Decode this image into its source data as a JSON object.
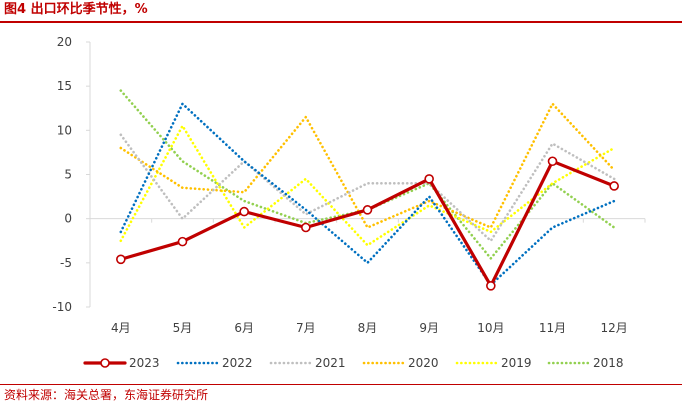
{
  "header": {
    "title": "图4  出口环比季节性，%"
  },
  "footer": {
    "source": "资料来源：海关总署，东海证券研究所"
  },
  "chart_data": {
    "type": "line",
    "title": "出口环比季节性，%",
    "xlabel": "",
    "ylabel": "",
    "categories": [
      "4月",
      "5月",
      "6月",
      "7月",
      "8月",
      "9月",
      "10月",
      "11月",
      "12月"
    ],
    "ylim": [
      -10,
      20
    ],
    "yticks": [
      -10,
      -5,
      0,
      5,
      10,
      15,
      20
    ],
    "grid": false,
    "legend_position": "bottom",
    "series": [
      {
        "name": "2018",
        "color": "#92d050",
        "style": "dotted",
        "values": [
          14.5,
          6.5,
          2.0,
          -0.5,
          1.0,
          4.0,
          -4.5,
          4.0,
          -1.0
        ]
      },
      {
        "name": "2019",
        "color": "#ffff00",
        "style": "dotted",
        "values": [
          -2.5,
          10.5,
          -1.0,
          4.5,
          -3.0,
          1.5,
          -1.5,
          4.0,
          8.0
        ]
      },
      {
        "name": "2020",
        "color": "#ffc000",
        "style": "dotted",
        "values": [
          8.0,
          3.5,
          3.0,
          11.5,
          -1.0,
          2.0,
          -1.0,
          13.0,
          5.5
        ]
      },
      {
        "name": "2021",
        "color": "#bfbfbf",
        "style": "dotted",
        "values": [
          9.5,
          0.0,
          6.5,
          0.5,
          4.0,
          4.0,
          -2.5,
          8.5,
          4.5
        ]
      },
      {
        "name": "2022",
        "color": "#0070c0",
        "style": "dotted",
        "values": [
          -1.5,
          13.0,
          6.5,
          1.0,
          -5.0,
          2.5,
          -7.5,
          -1.0,
          2.0
        ]
      },
      {
        "name": "2023",
        "color": "#c00000",
        "style": "solid-marker",
        "values": [
          -4.6,
          -2.6,
          0.8,
          -1.0,
          1.0,
          4.5,
          -7.6,
          6.5,
          3.7
        ]
      }
    ],
    "legend_order": [
      "2023",
      "2022",
      "2021",
      "2020",
      "2019",
      "2018"
    ]
  }
}
